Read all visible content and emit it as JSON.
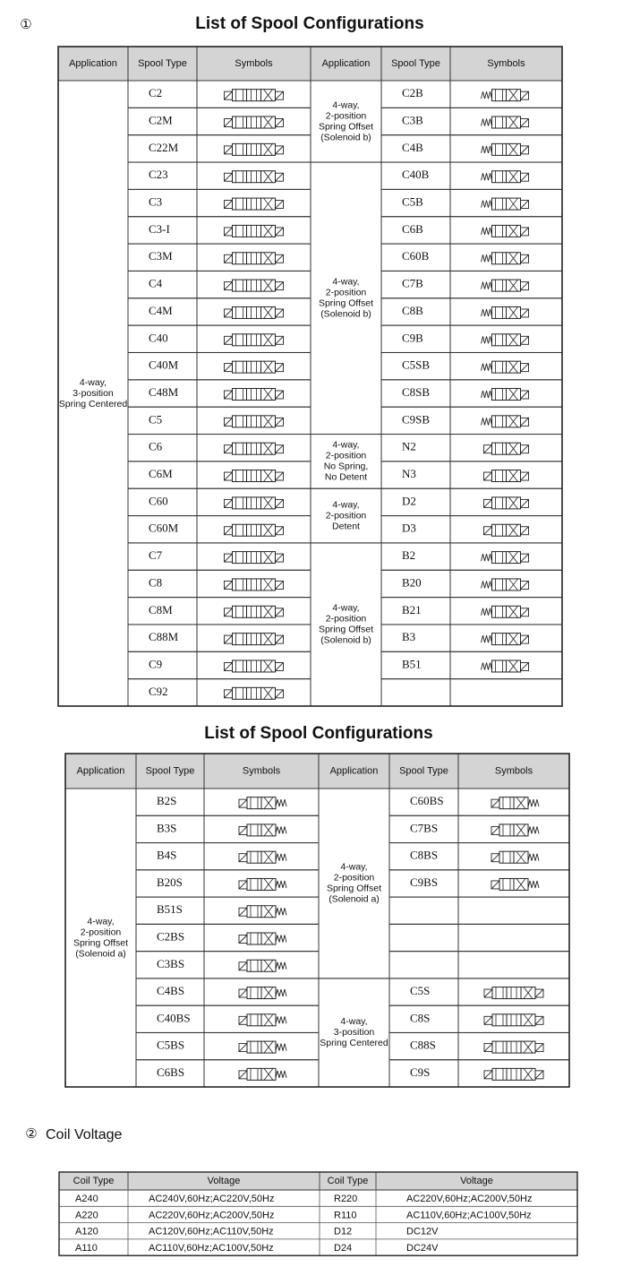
{
  "marker1": "①",
  "title1": "List of Spool Configurations",
  "table1": {
    "headers": [
      "Application",
      "Spool Type",
      "Symbols",
      "Application",
      "Spool Type",
      "Symbols"
    ],
    "left": [
      {
        "application": [
          "4-way,",
          "3-position",
          "Spring Centered"
        ],
        "spools": [
          "C2",
          "C2M",
          "C22M",
          "C23",
          "C3",
          "C3-I",
          "C3M",
          "C4",
          "C4M",
          "C40",
          "C40M",
          "C48M",
          "C5",
          "C6",
          "C6M",
          "C60",
          "C60M",
          "C7",
          "C8",
          "C8M",
          "C88M",
          "C9",
          "C92"
        ]
      }
    ],
    "right": [
      {
        "application": [
          "4-way,",
          "2-position",
          "Spring Offset",
          "(Solenoid b)"
        ],
        "spools": [
          "C2B",
          "C3B",
          "C4B"
        ]
      },
      {
        "application": [
          "4-way,",
          "2-position",
          "Spring Offset",
          "(Solenoid b)"
        ],
        "spools": [
          "C40B",
          "C5B",
          "C6B",
          "C60B",
          "C7B",
          "C8B",
          "C9B",
          "C5SB",
          "C8SB",
          "C9SB"
        ]
      },
      {
        "application": [
          "4-way,",
          "2-position",
          "No Spring,",
          "No Detent"
        ],
        "spools": [
          "N2",
          "N3"
        ]
      },
      {
        "application": [
          "4-way,",
          "2-position",
          "Detent"
        ],
        "spools": [
          "D2",
          "D3"
        ]
      },
      {
        "application": [
          "4-way,",
          "2-position",
          "Spring Offset",
          "(Solenoid b)"
        ],
        "spools": [
          "B2",
          "B20",
          "B21",
          "B3",
          "B51",
          null
        ]
      }
    ]
  },
  "title2": "List of Spool Configurations",
  "table2": {
    "headers": [
      "Application",
      "Spool Type",
      "Symbols",
      "Application",
      "Spool Type",
      "Symbols"
    ],
    "left": [
      {
        "application": [
          "4-way,",
          "2-position",
          "Spring Offset",
          "(Solenoid a)"
        ],
        "spools": [
          "B2S",
          "B3S",
          "B4S",
          "B20S",
          "B51S",
          "C2BS",
          "C3BS",
          "C4BS",
          "C40BS",
          "C5BS",
          "C6BS"
        ]
      }
    ],
    "right": [
      {
        "application": [
          "4-way,",
          "2-position",
          "Spring Offset",
          "(Solenoid a)"
        ],
        "spools": [
          "C60BS",
          "C7BS",
          "C8BS",
          "C9BS",
          null,
          null,
          null
        ]
      },
      {
        "application": [
          "4-way,",
          "3-position",
          "Spring Centered"
        ],
        "spools": [
          "C5S",
          "C8S",
          "C88S",
          "C9S"
        ]
      }
    ]
  },
  "marker2": "②",
  "title3": "Coil Voltage",
  "coil": {
    "headers": [
      "Coil Type",
      "Voltage",
      "Coil Type",
      "Voltage"
    ],
    "rows": [
      [
        "A240",
        "AC240V,60Hz;AC220V,50Hz",
        "R220",
        "AC220V,60Hz;AC200V,50Hz"
      ],
      [
        "A220",
        "AC220V,60Hz;AC200V,50Hz",
        "R110",
        "AC110V,60Hz;AC100V,50Hz"
      ],
      [
        "A120",
        "AC120V,60Hz;AC110V,50Hz",
        "D12",
        "DC12V"
      ],
      [
        "A110",
        "AC110V,60Hz;AC100V,50Hz",
        "D24",
        "DC24V"
      ]
    ]
  }
}
